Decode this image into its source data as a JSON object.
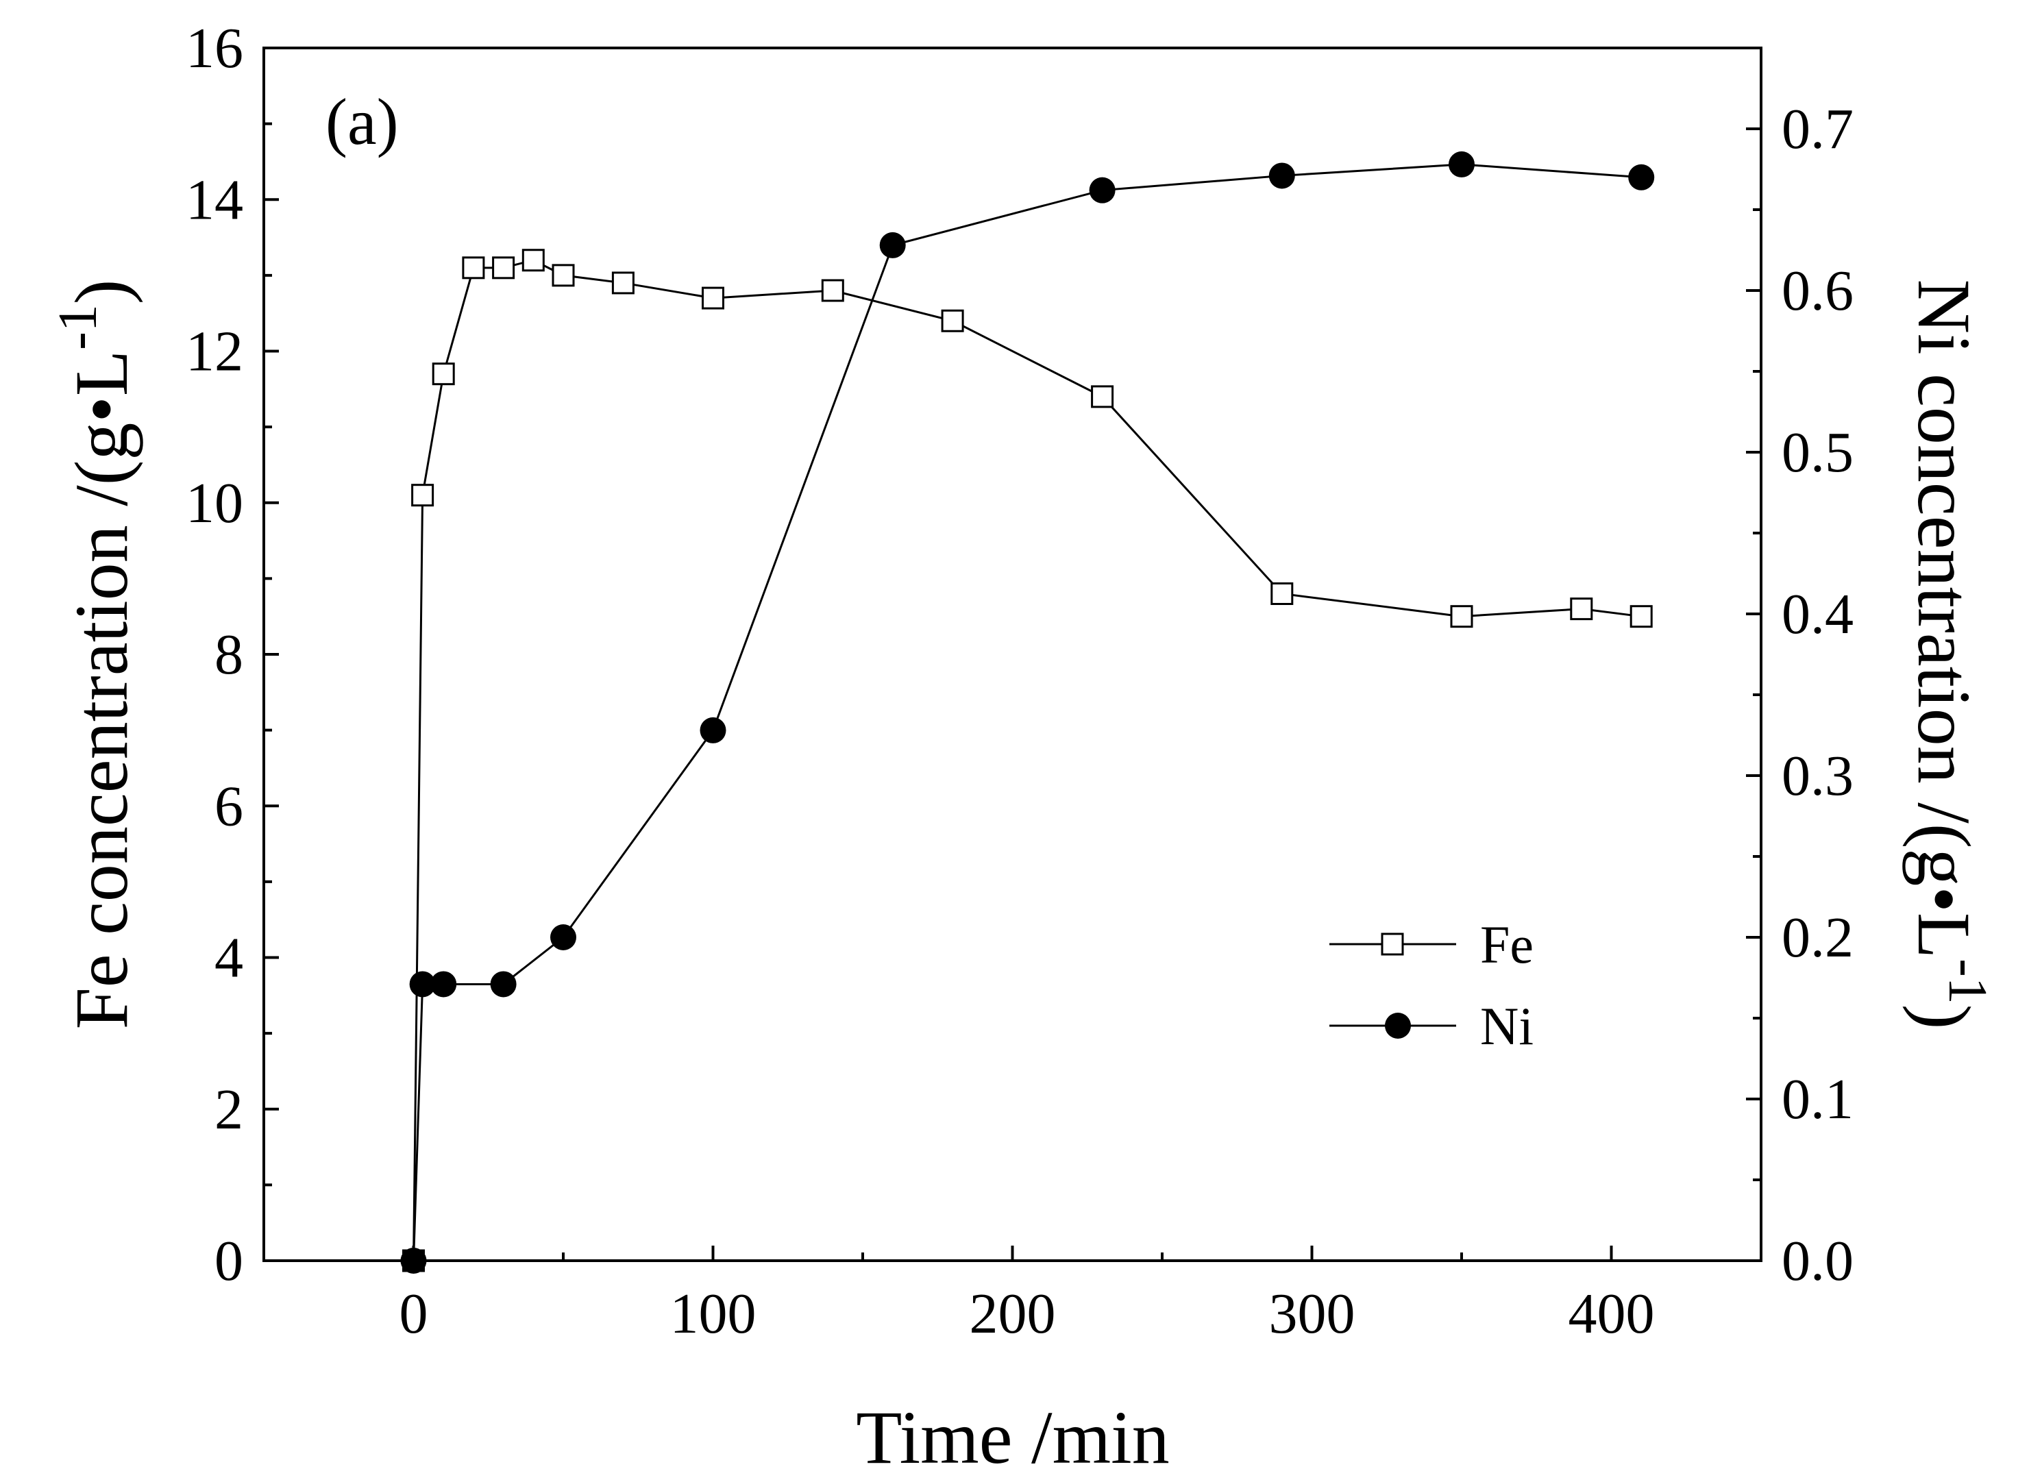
{
  "chart_data": {
    "type": "line",
    "panel_label": "(a)",
    "xlabel": "Time /min",
    "ylabel_left": "Fe concentration /(g•L",
    "ylabel_left_sup": "-1",
    "ylabel_left_close": ")",
    "ylabel_right": "Ni concentration /(g•L",
    "ylabel_right_sup": "-1",
    "ylabel_right_close": ")",
    "xlim": [
      -50,
      450
    ],
    "ylim_left": [
      0,
      16
    ],
    "ylim_right": [
      0.0,
      0.75
    ],
    "x_ticks": [
      0,
      100,
      200,
      300,
      400
    ],
    "x_tick_labels": [
      "0",
      "100",
      "200",
      "300",
      "400"
    ],
    "y_left_ticks": [
      0,
      2,
      4,
      6,
      8,
      10,
      12,
      14,
      16
    ],
    "y_left_tick_labels": [
      "0",
      "2",
      "4",
      "6",
      "8",
      "10",
      "12",
      "14",
      "16"
    ],
    "y_right_ticks": [
      0.0,
      0.1,
      0.2,
      0.3,
      0.4,
      0.5,
      0.6,
      0.7
    ],
    "y_right_tick_labels": [
      "0.0",
      "0.1",
      "0.2",
      "0.3",
      "0.4",
      "0.5",
      "0.6",
      "0.7"
    ],
    "legend_position": "lower-right",
    "series": [
      {
        "name": "Fe",
        "axis": "left",
        "marker": "open-square",
        "x": [
          0,
          3,
          10,
          20,
          30,
          40,
          50,
          70,
          100,
          140,
          180,
          230,
          290,
          350,
          390,
          410
        ],
        "y": [
          0,
          10.1,
          11.7,
          13.1,
          13.1,
          13.2,
          13.0,
          12.9,
          12.7,
          12.8,
          12.4,
          11.4,
          8.8,
          8.5,
          8.6,
          8.5
        ]
      },
      {
        "name": "Ni",
        "axis": "right",
        "marker": "filled-circle",
        "x": [
          0,
          3,
          10,
          30,
          50,
          100,
          160,
          230,
          290,
          350,
          410
        ],
        "y": [
          0.0,
          0.171,
          0.171,
          0.171,
          0.2,
          0.328,
          0.628,
          0.662,
          0.671,
          0.678,
          0.67
        ]
      }
    ]
  }
}
